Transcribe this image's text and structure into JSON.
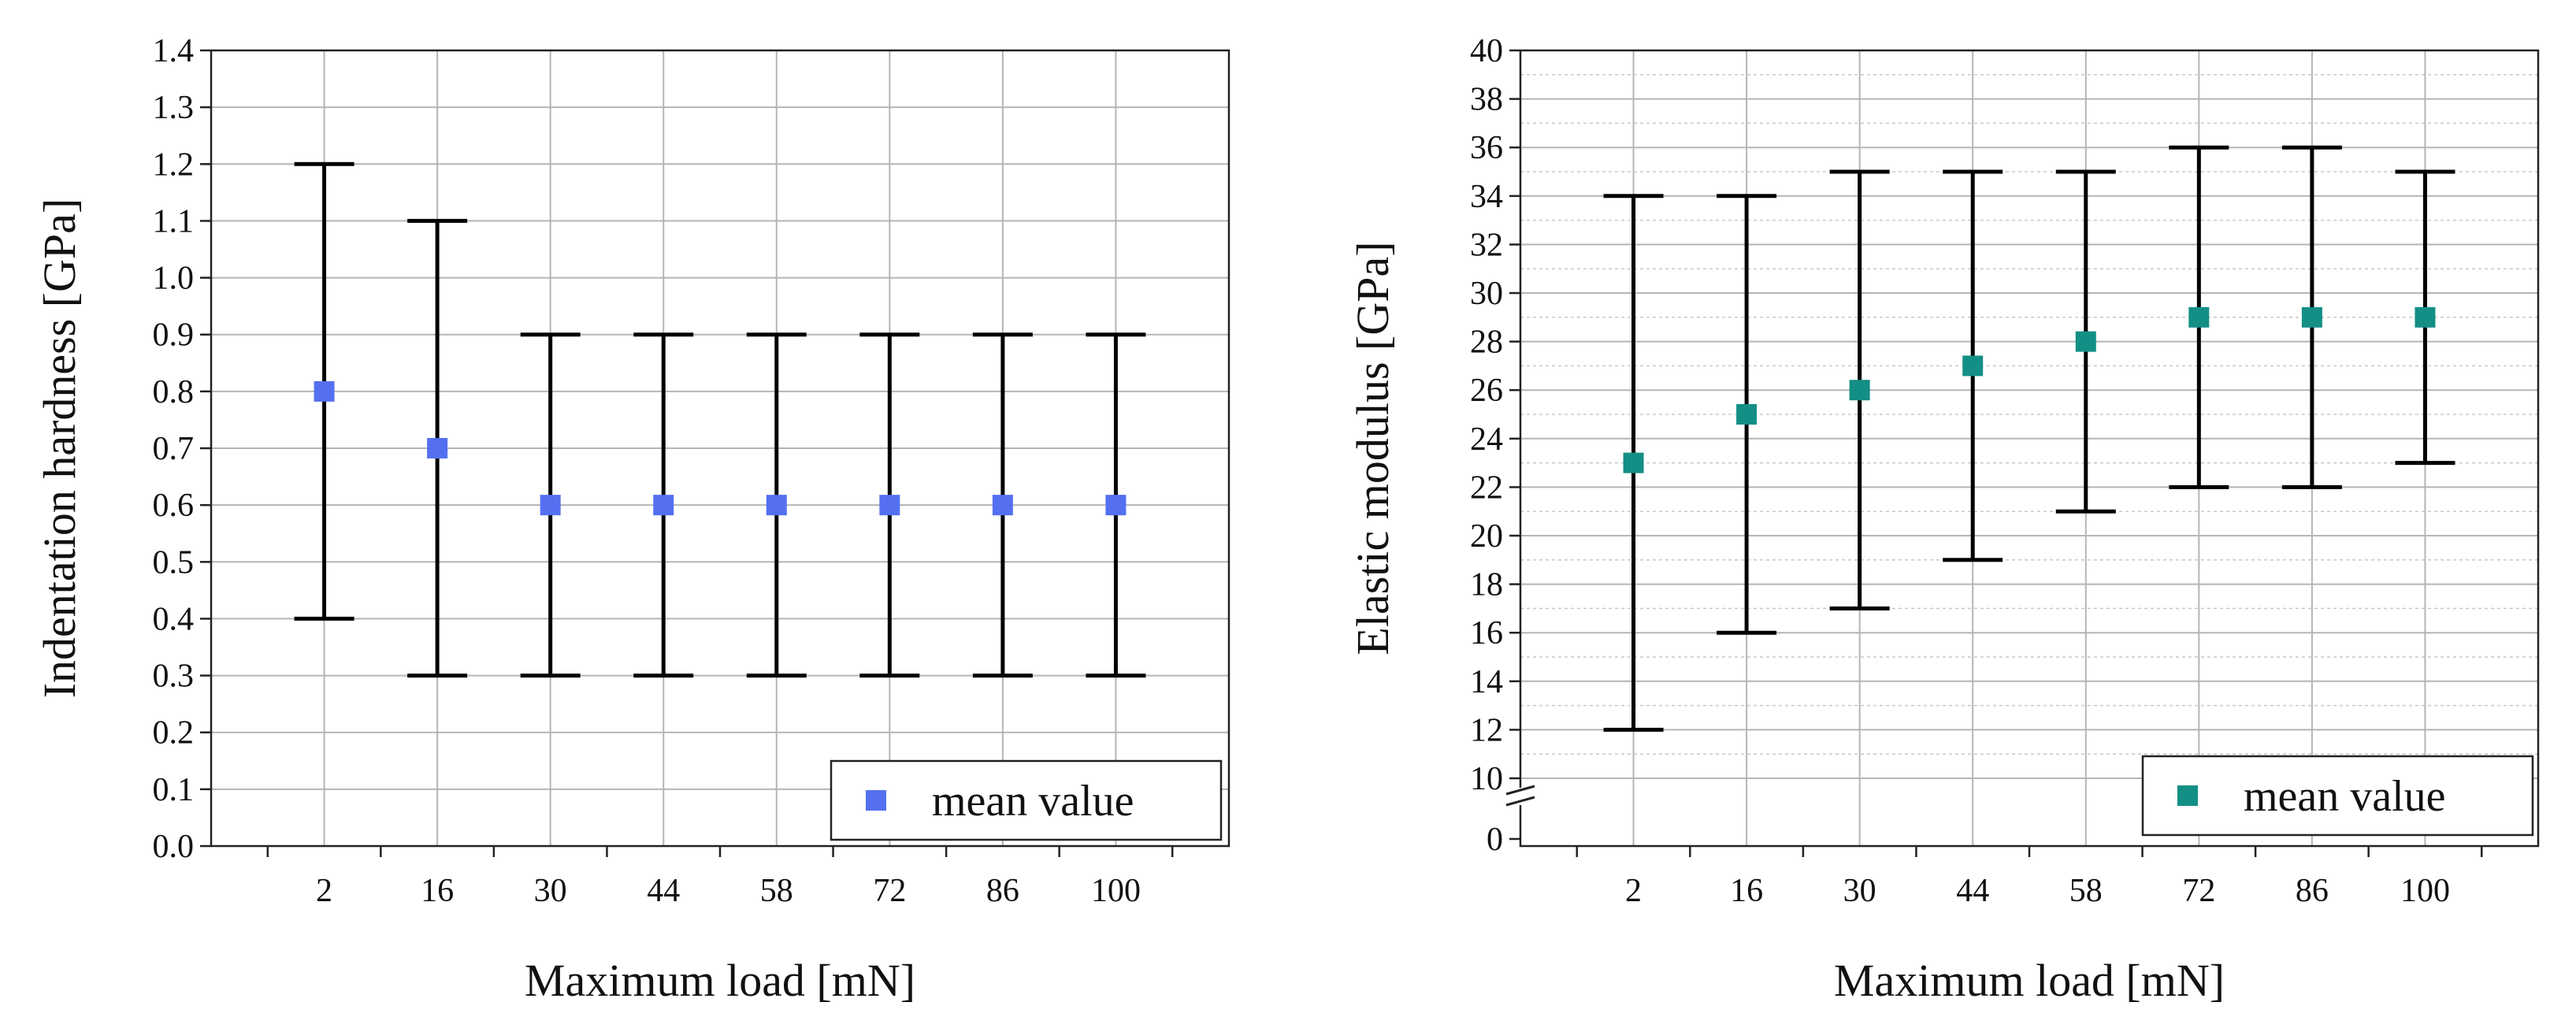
{
  "chart_data": [
    {
      "type": "scatter",
      "title": "",
      "xlabel": "Maximum load [mN]",
      "ylabel": "Indentation hardness [GPa]",
      "categories": [
        "2",
        "16",
        "30",
        "44",
        "58",
        "72",
        "86",
        "100"
      ],
      "ylim": [
        0.0,
        1.4
      ],
      "yticks": [
        "0.0",
        "0.1",
        "0.2",
        "0.3",
        "0.4",
        "0.5",
        "0.6",
        "0.7",
        "0.8",
        "0.9",
        "1.0",
        "1.1",
        "1.2",
        "1.3",
        "1.4"
      ],
      "grid": true,
      "series": [
        {
          "name": "mean value",
          "color": "#5470f0",
          "values": [
            0.8,
            0.7,
            0.6,
            0.6,
            0.6,
            0.6,
            0.6,
            0.6
          ],
          "lower": [
            0.4,
            0.3,
            0.3,
            0.3,
            0.3,
            0.3,
            0.3,
            0.3
          ],
          "upper": [
            1.2,
            1.1,
            0.9,
            0.9,
            0.9,
            0.9,
            0.9,
            0.9
          ]
        }
      ],
      "legend": {
        "label": "mean value",
        "position": "bottom-right"
      }
    },
    {
      "type": "scatter",
      "title": "",
      "xlabel": "Maximum load [mN]",
      "ylabel": "Elastic modulus [GPa]",
      "categories": [
        "2",
        "16",
        "30",
        "44",
        "58",
        "72",
        "86",
        "100"
      ],
      "ylim": [
        10,
        40
      ],
      "axis_break": "between 0 and 10",
      "yticks": [
        "10",
        "12",
        "14",
        "16",
        "18",
        "20",
        "22",
        "24",
        "26",
        "28",
        "30",
        "32",
        "34",
        "36",
        "38",
        "40"
      ],
      "ytick_below_break": "0",
      "grid": true,
      "series": [
        {
          "name": "mean value",
          "color": "#138f86",
          "values": [
            23,
            25,
            26,
            27,
            28,
            29,
            29,
            29
          ],
          "lower": [
            12,
            16,
            17,
            19,
            21,
            22,
            22,
            23
          ],
          "upper": [
            34,
            34,
            35,
            35,
            35,
            36,
            36,
            35
          ]
        }
      ],
      "legend": {
        "label": "mean value",
        "position": "bottom-right"
      }
    }
  ]
}
